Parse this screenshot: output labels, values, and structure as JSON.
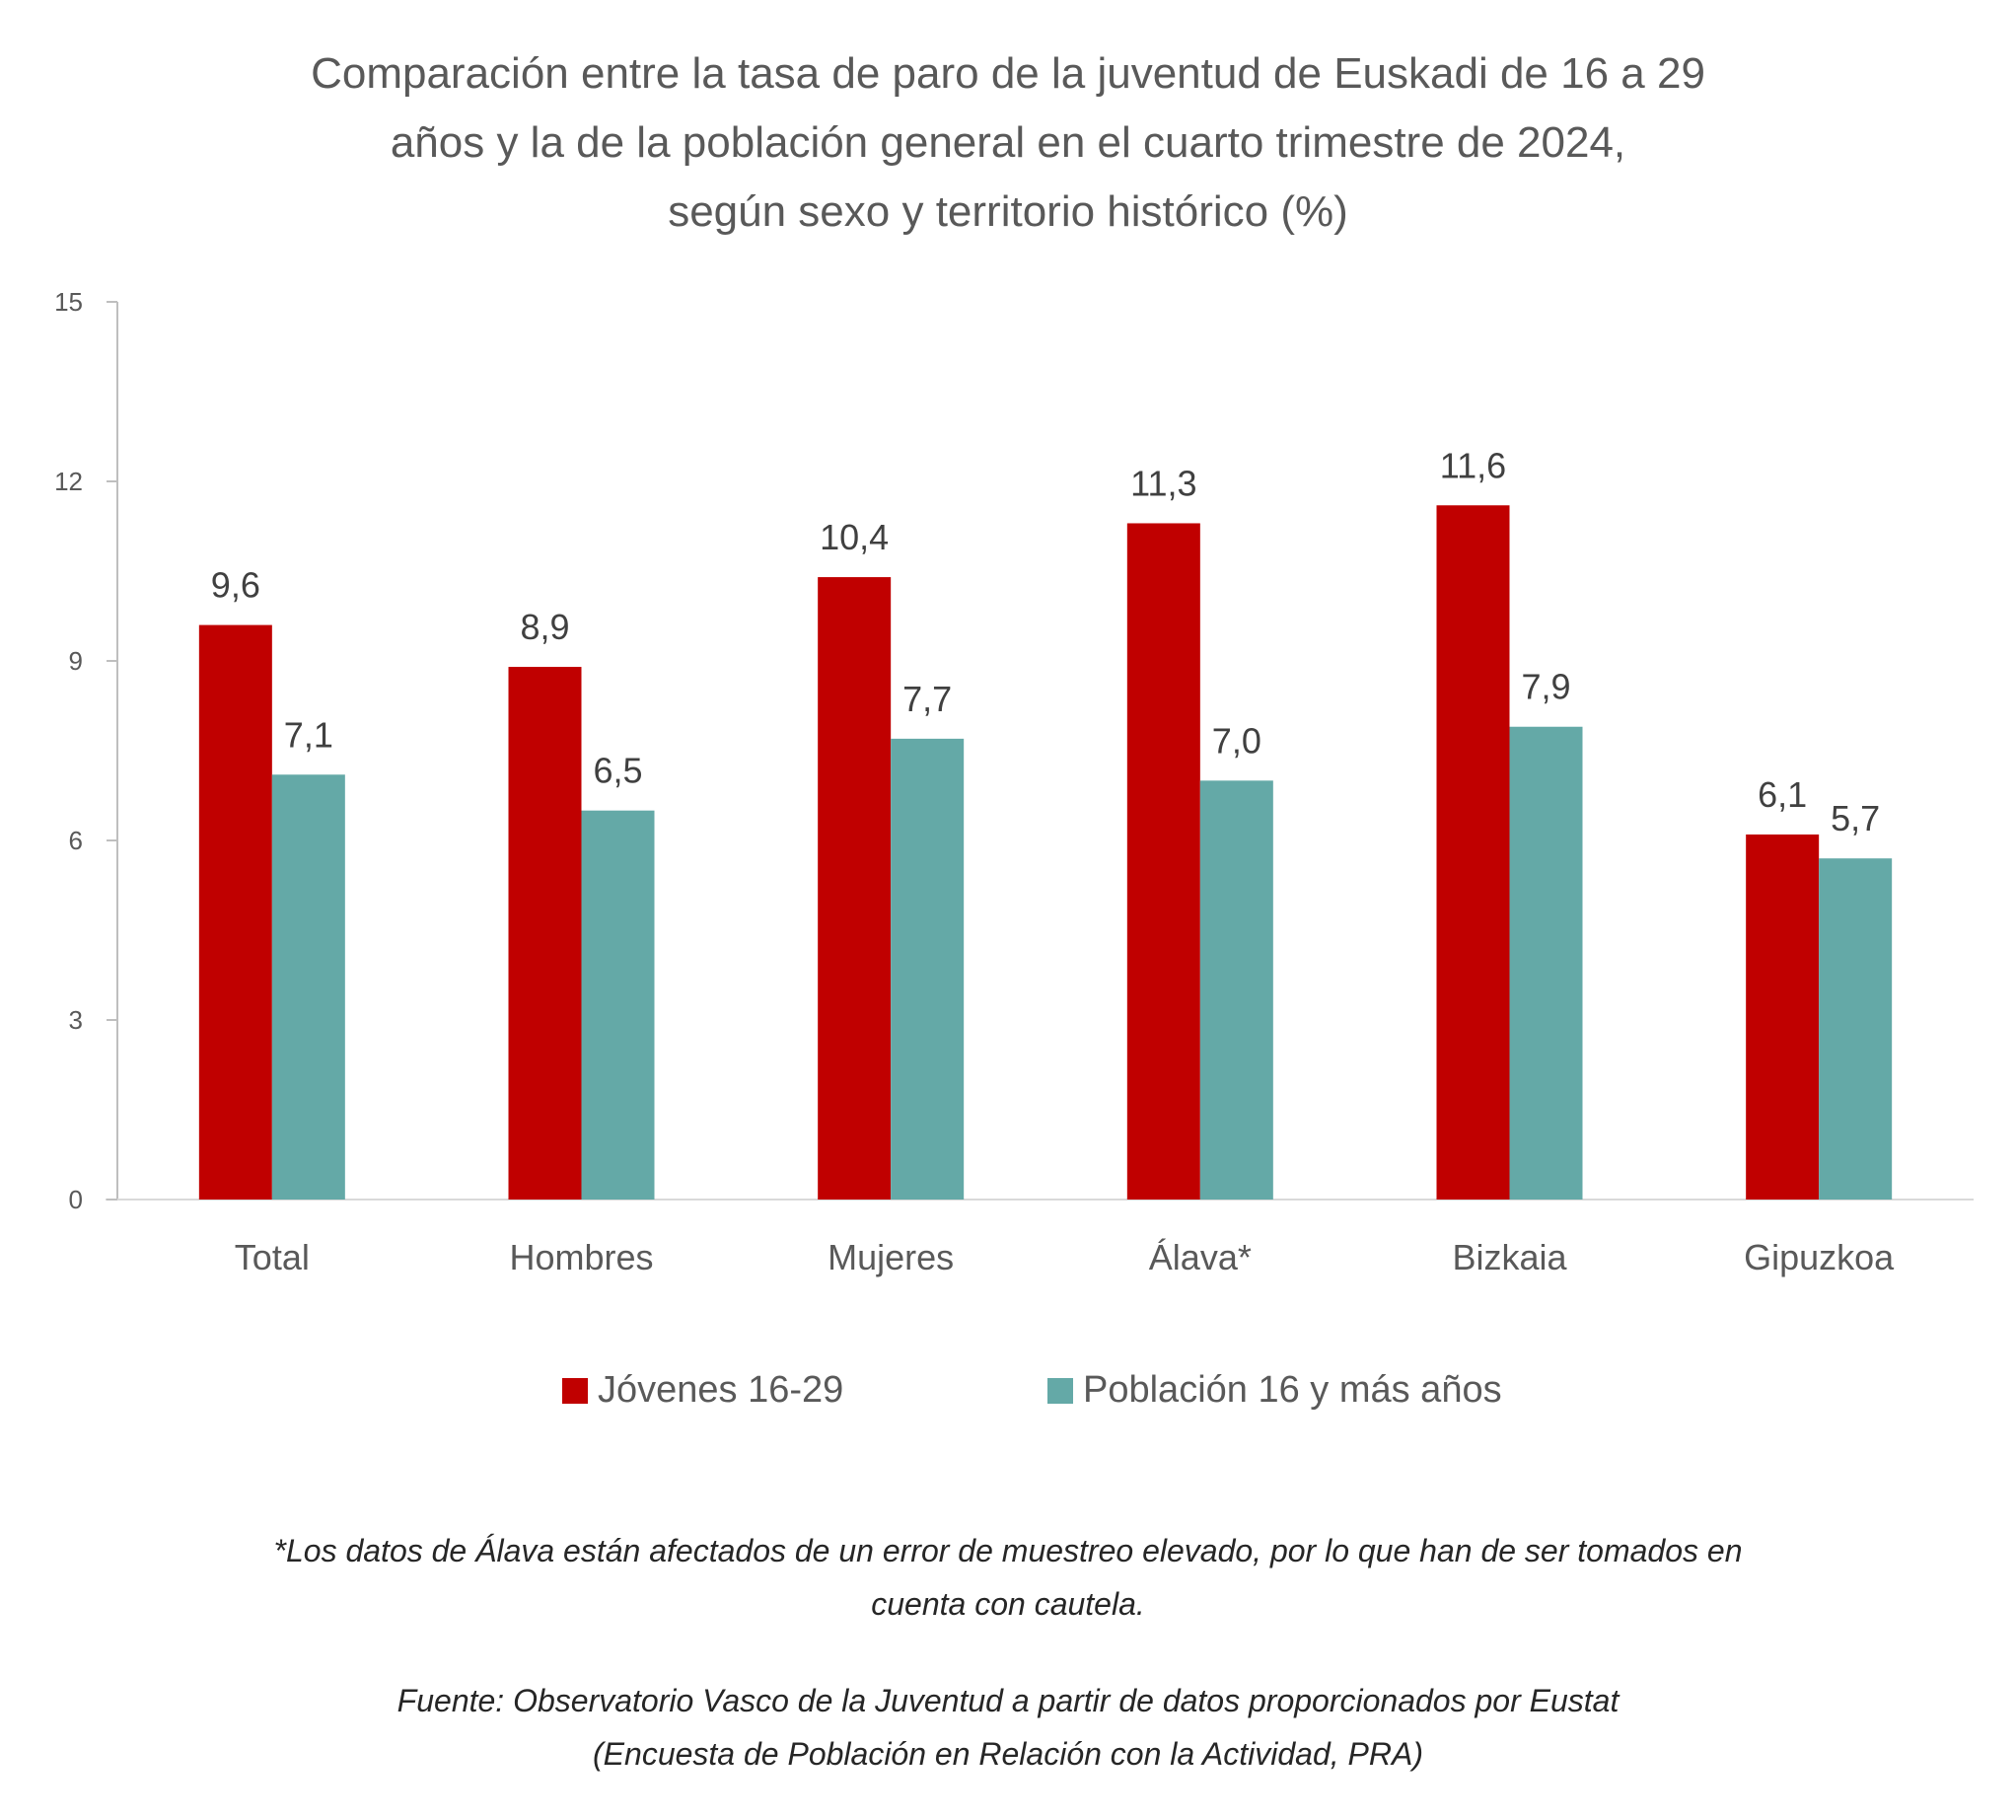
{
  "chart_data": {
    "type": "bar",
    "title_lines": [
      "Comparación entre la tasa de paro de la juventud de Euskadi de 16 a 29",
      "años y la de la población general en el cuarto trimestre de 2024,",
      "según sexo y territorio histórico (%)"
    ],
    "xlabel": "",
    "ylabel": "",
    "categories": [
      "Total",
      "Hombres",
      "Mujeres",
      "Álava*",
      "Bizkaia",
      "Gipuzkoa"
    ],
    "series": [
      {
        "name": "Jóvenes 16-29",
        "color": "#C00000",
        "values": [
          9.6,
          8.9,
          10.4,
          11.3,
          11.6,
          6.1
        ],
        "labels": [
          "9,6",
          "8,9",
          "10,4",
          "11,3",
          "11,6",
          "6,1"
        ]
      },
      {
        "name": "Población 16 y más años",
        "color": "#64A9A7",
        "values": [
          7.1,
          6.5,
          7.7,
          7.0,
          7.9,
          5.7
        ],
        "labels": [
          "7,1",
          "6,5",
          "7,7",
          "7,0",
          "7,9",
          "5,7"
        ]
      }
    ],
    "ylim": [
      0,
      15
    ],
    "yticks": [
      0,
      3,
      6,
      9,
      12,
      15
    ],
    "ytick_labels": [
      "0",
      "3",
      "6",
      "9",
      "12",
      "15"
    ],
    "grid": false,
    "legend_position": "bottom"
  },
  "notes": {
    "caveat_lines": [
      "*Los datos de Álava están afectados de un error de muestreo elevado, por lo que han de ser tomados en",
      "cuenta con cautela."
    ],
    "source_lines": [
      "Fuente: Observatorio Vasco de la Juventud a partir de datos proporcionados por Eustat",
      "(Encuesta de Población en Relación con la Actividad, PRA)"
    ]
  }
}
